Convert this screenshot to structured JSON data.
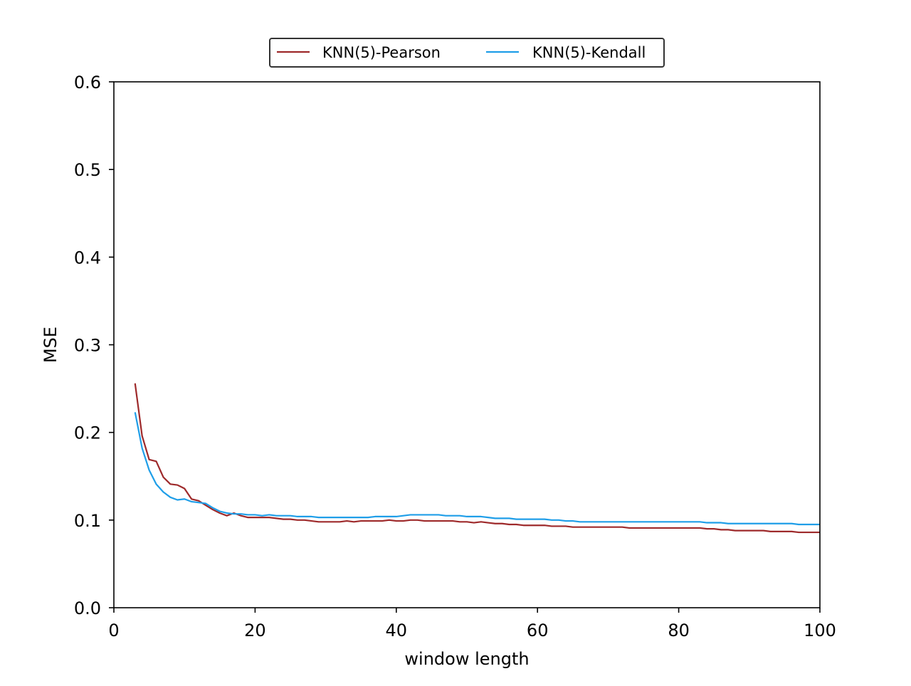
{
  "chart_data": {
    "type": "line",
    "title": "",
    "xlabel": "window length",
    "ylabel": "MSE",
    "xlim": [
      0,
      100
    ],
    "ylim": [
      0.0,
      0.6
    ],
    "x_ticks": [
      0,
      20,
      40,
      60,
      80,
      100
    ],
    "x_tick_labels": [
      "0",
      "20",
      "40",
      "60",
      "80",
      "100"
    ],
    "y_ticks": [
      0.0,
      0.1,
      0.2,
      0.3,
      0.4,
      0.5,
      0.6
    ],
    "y_tick_labels": [
      "0.0",
      "0.1",
      "0.2",
      "0.3",
      "0.4",
      "0.5",
      "0.6"
    ],
    "grid": false,
    "legend": {
      "placement": "top-center, above plot",
      "columns": 2
    },
    "series": [
      {
        "name": "KNN(5)-Pearson",
        "color": "#9e2a2b",
        "x": [
          3,
          4,
          5,
          6,
          7,
          8,
          9,
          10,
          11,
          12,
          13,
          14,
          15,
          16,
          17,
          18,
          19,
          20,
          21,
          22,
          23,
          24,
          25,
          26,
          27,
          28,
          29,
          30,
          31,
          32,
          33,
          34,
          35,
          36,
          37,
          38,
          39,
          40,
          41,
          42,
          43,
          44,
          45,
          46,
          47,
          48,
          49,
          50,
          51,
          52,
          53,
          54,
          55,
          56,
          57,
          58,
          59,
          60,
          61,
          62,
          63,
          64,
          65,
          66,
          67,
          68,
          69,
          70,
          71,
          72,
          73,
          74,
          75,
          76,
          77,
          78,
          79,
          80,
          81,
          82,
          83,
          84,
          85,
          86,
          87,
          88,
          89,
          90,
          91,
          92,
          93,
          94,
          95,
          96,
          97,
          98,
          99,
          100
        ],
        "values": [
          0.256,
          0.196,
          0.169,
          0.167,
          0.149,
          0.141,
          0.14,
          0.136,
          0.124,
          0.122,
          0.117,
          0.112,
          0.108,
          0.105,
          0.108,
          0.105,
          0.103,
          0.103,
          0.103,
          0.103,
          0.102,
          0.101,
          0.101,
          0.1,
          0.1,
          0.099,
          0.098,
          0.098,
          0.098,
          0.098,
          0.099,
          0.098,
          0.099,
          0.099,
          0.099,
          0.099,
          0.1,
          0.099,
          0.099,
          0.1,
          0.1,
          0.099,
          0.099,
          0.099,
          0.099,
          0.099,
          0.098,
          0.098,
          0.097,
          0.098,
          0.097,
          0.096,
          0.096,
          0.095,
          0.095,
          0.094,
          0.094,
          0.094,
          0.094,
          0.093,
          0.093,
          0.093,
          0.092,
          0.092,
          0.092,
          0.092,
          0.092,
          0.092,
          0.092,
          0.092,
          0.091,
          0.091,
          0.091,
          0.091,
          0.091,
          0.091,
          0.091,
          0.091,
          0.091,
          0.091,
          0.091,
          0.09,
          0.09,
          0.089,
          0.089,
          0.088,
          0.088,
          0.088,
          0.088,
          0.088,
          0.087,
          0.087,
          0.087,
          0.087,
          0.086,
          0.086,
          0.086,
          0.086
        ]
      },
      {
        "name": "KNN(5)-Kendall",
        "color": "#1f9ee8",
        "x": [
          3,
          4,
          5,
          6,
          7,
          8,
          9,
          10,
          11,
          12,
          13,
          14,
          15,
          16,
          17,
          18,
          19,
          20,
          21,
          22,
          23,
          24,
          25,
          26,
          27,
          28,
          29,
          30,
          31,
          32,
          33,
          34,
          35,
          36,
          37,
          38,
          39,
          40,
          41,
          42,
          43,
          44,
          45,
          46,
          47,
          48,
          49,
          50,
          51,
          52,
          53,
          54,
          55,
          56,
          57,
          58,
          59,
          60,
          61,
          62,
          63,
          64,
          65,
          66,
          67,
          68,
          69,
          70,
          71,
          72,
          73,
          74,
          75,
          76,
          77,
          78,
          79,
          80,
          81,
          82,
          83,
          84,
          85,
          86,
          87,
          88,
          89,
          90,
          91,
          92,
          93,
          94,
          95,
          96,
          97,
          98,
          99,
          100
        ],
        "values": [
          0.223,
          0.182,
          0.157,
          0.141,
          0.132,
          0.126,
          0.123,
          0.124,
          0.121,
          0.12,
          0.119,
          0.114,
          0.11,
          0.108,
          0.107,
          0.107,
          0.106,
          0.106,
          0.105,
          0.106,
          0.105,
          0.105,
          0.105,
          0.104,
          0.104,
          0.104,
          0.103,
          0.103,
          0.103,
          0.103,
          0.103,
          0.103,
          0.103,
          0.103,
          0.104,
          0.104,
          0.104,
          0.104,
          0.105,
          0.106,
          0.106,
          0.106,
          0.106,
          0.106,
          0.105,
          0.105,
          0.105,
          0.104,
          0.104,
          0.104,
          0.103,
          0.102,
          0.102,
          0.102,
          0.101,
          0.101,
          0.101,
          0.101,
          0.101,
          0.1,
          0.1,
          0.099,
          0.099,
          0.098,
          0.098,
          0.098,
          0.098,
          0.098,
          0.098,
          0.098,
          0.098,
          0.098,
          0.098,
          0.098,
          0.098,
          0.098,
          0.098,
          0.098,
          0.098,
          0.098,
          0.098,
          0.097,
          0.097,
          0.097,
          0.096,
          0.096,
          0.096,
          0.096,
          0.096,
          0.096,
          0.096,
          0.096,
          0.096,
          0.096,
          0.095,
          0.095,
          0.095,
          0.095
        ]
      }
    ]
  }
}
